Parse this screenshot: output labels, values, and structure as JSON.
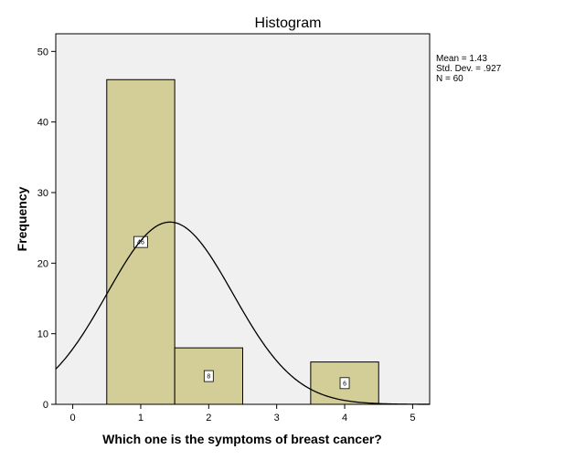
{
  "chart_data": {
    "type": "bar",
    "title": "Histogram",
    "xlabel": "Which one is the symptoms of breast cancer?",
    "ylabel": "Frequency",
    "x_ticks": [
      "0",
      "1",
      "2",
      "3",
      "4",
      "5"
    ],
    "y_ticks": [
      "0",
      "10",
      "20",
      "30",
      "40",
      "50"
    ],
    "xlim": [
      -0.25,
      5.25
    ],
    "ylim": [
      0,
      52.5
    ],
    "bins": [
      {
        "start": 0.5,
        "end": 1.5,
        "value": 46,
        "label": "46"
      },
      {
        "start": 1.5,
        "end": 2.5,
        "value": 8,
        "label": "8"
      },
      {
        "start": 3.5,
        "end": 4.5,
        "value": 6,
        "label": "6"
      }
    ],
    "normal_curve": {
      "mean": 1.43,
      "std": 0.927,
      "n": 60,
      "bin_width": 1
    },
    "stats": {
      "mean": "Mean = 1.43",
      "std": "Std. Dev. = .927",
      "n": "N = 60"
    },
    "colors": {
      "bar_fill": "#d3ce98",
      "plot_bg": "#f0f0f0",
      "stroke": "#000000"
    },
    "grid": false
  }
}
